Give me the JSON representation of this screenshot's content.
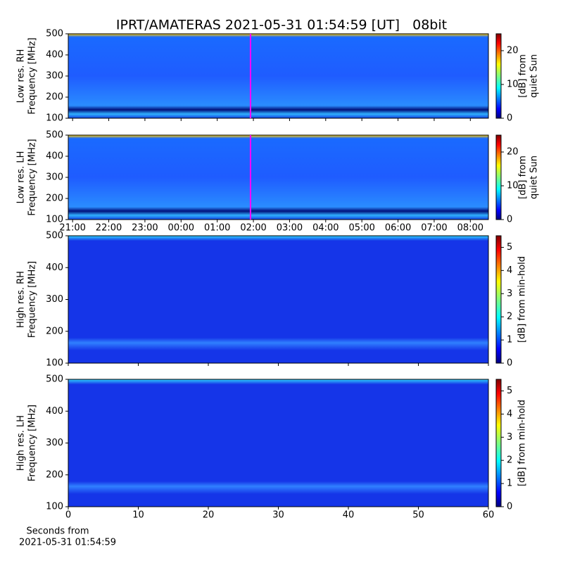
{
  "title": "IPRT/AMATERAS 2021-05-31 01:54:59 [UT]   08bit",
  "chart_data": [
    {
      "type": "heatmap",
      "ylabel": [
        "Low res. RH",
        "Frequency [MHz]"
      ],
      "ylim": [
        100,
        500
      ],
      "yticks": [
        100,
        200,
        300,
        400,
        500
      ],
      "xlim": [
        20.88,
        32.5
      ],
      "cursor_x": 25.92,
      "cursor_color": "#ff00ff",
      "colorbar": {
        "label": [
          "[dB] from",
          "quiet Sun"
        ],
        "lim": [
          0,
          25
        ],
        "ticks": [
          0,
          10,
          20
        ]
      }
    },
    {
      "type": "heatmap",
      "ylabel": [
        "Low res. LH",
        "Frequency [MHz]"
      ],
      "ylim": [
        100,
        500
      ],
      "yticks": [
        100,
        200,
        300,
        400,
        500
      ],
      "xlim": [
        20.88,
        32.5
      ],
      "cursor_x": 25.92,
      "cursor_color": "#ff00ff",
      "xticks": [
        {
          "value": 21,
          "label": "21:00"
        },
        {
          "value": 22,
          "label": "22:00"
        },
        {
          "value": 23,
          "label": "23:00"
        },
        {
          "value": 24,
          "label": "00:00"
        },
        {
          "value": 25,
          "label": "01:00"
        },
        {
          "value": 26,
          "label": "02:00"
        },
        {
          "value": 27,
          "label": "03:00"
        },
        {
          "value": 28,
          "label": "04:00"
        },
        {
          "value": 29,
          "label": "05:00"
        },
        {
          "value": 30,
          "label": "06:00"
        },
        {
          "value": 31,
          "label": "07:00"
        },
        {
          "value": 32,
          "label": "08:00"
        }
      ],
      "colorbar": {
        "label": [
          "[dB] from",
          "quiet Sun"
        ],
        "lim": [
          0,
          25
        ],
        "ticks": [
          0,
          10,
          20
        ]
      }
    },
    {
      "type": "heatmap",
      "ylabel": [
        "High res. RH",
        "Frequency [MHz]"
      ],
      "ylim": [
        100,
        500
      ],
      "yticks": [
        100,
        200,
        300,
        400,
        500
      ],
      "xlim": [
        0,
        60
      ],
      "colorbar": {
        "label": [
          "[dB] from min-hold"
        ],
        "lim": [
          0,
          5.5
        ],
        "ticks": [
          0,
          1,
          2,
          3,
          4,
          5
        ]
      }
    },
    {
      "type": "heatmap",
      "ylabel": [
        "High res. LH",
        "Frequency [MHz]"
      ],
      "ylim": [
        100,
        500
      ],
      "yticks": [
        100,
        200,
        300,
        400,
        500
      ],
      "xlim": [
        0,
        60
      ],
      "xticks": [
        0,
        10,
        20,
        30,
        40,
        50,
        60
      ],
      "xlabel": [
        "Seconds from",
        "2021-05-31 01:54:59"
      ],
      "colorbar": {
        "label": [
          "[dB] from min-hold"
        ],
        "lim": [
          0,
          5.5
        ],
        "ticks": [
          0,
          1,
          2,
          3,
          4,
          5
        ]
      }
    }
  ]
}
